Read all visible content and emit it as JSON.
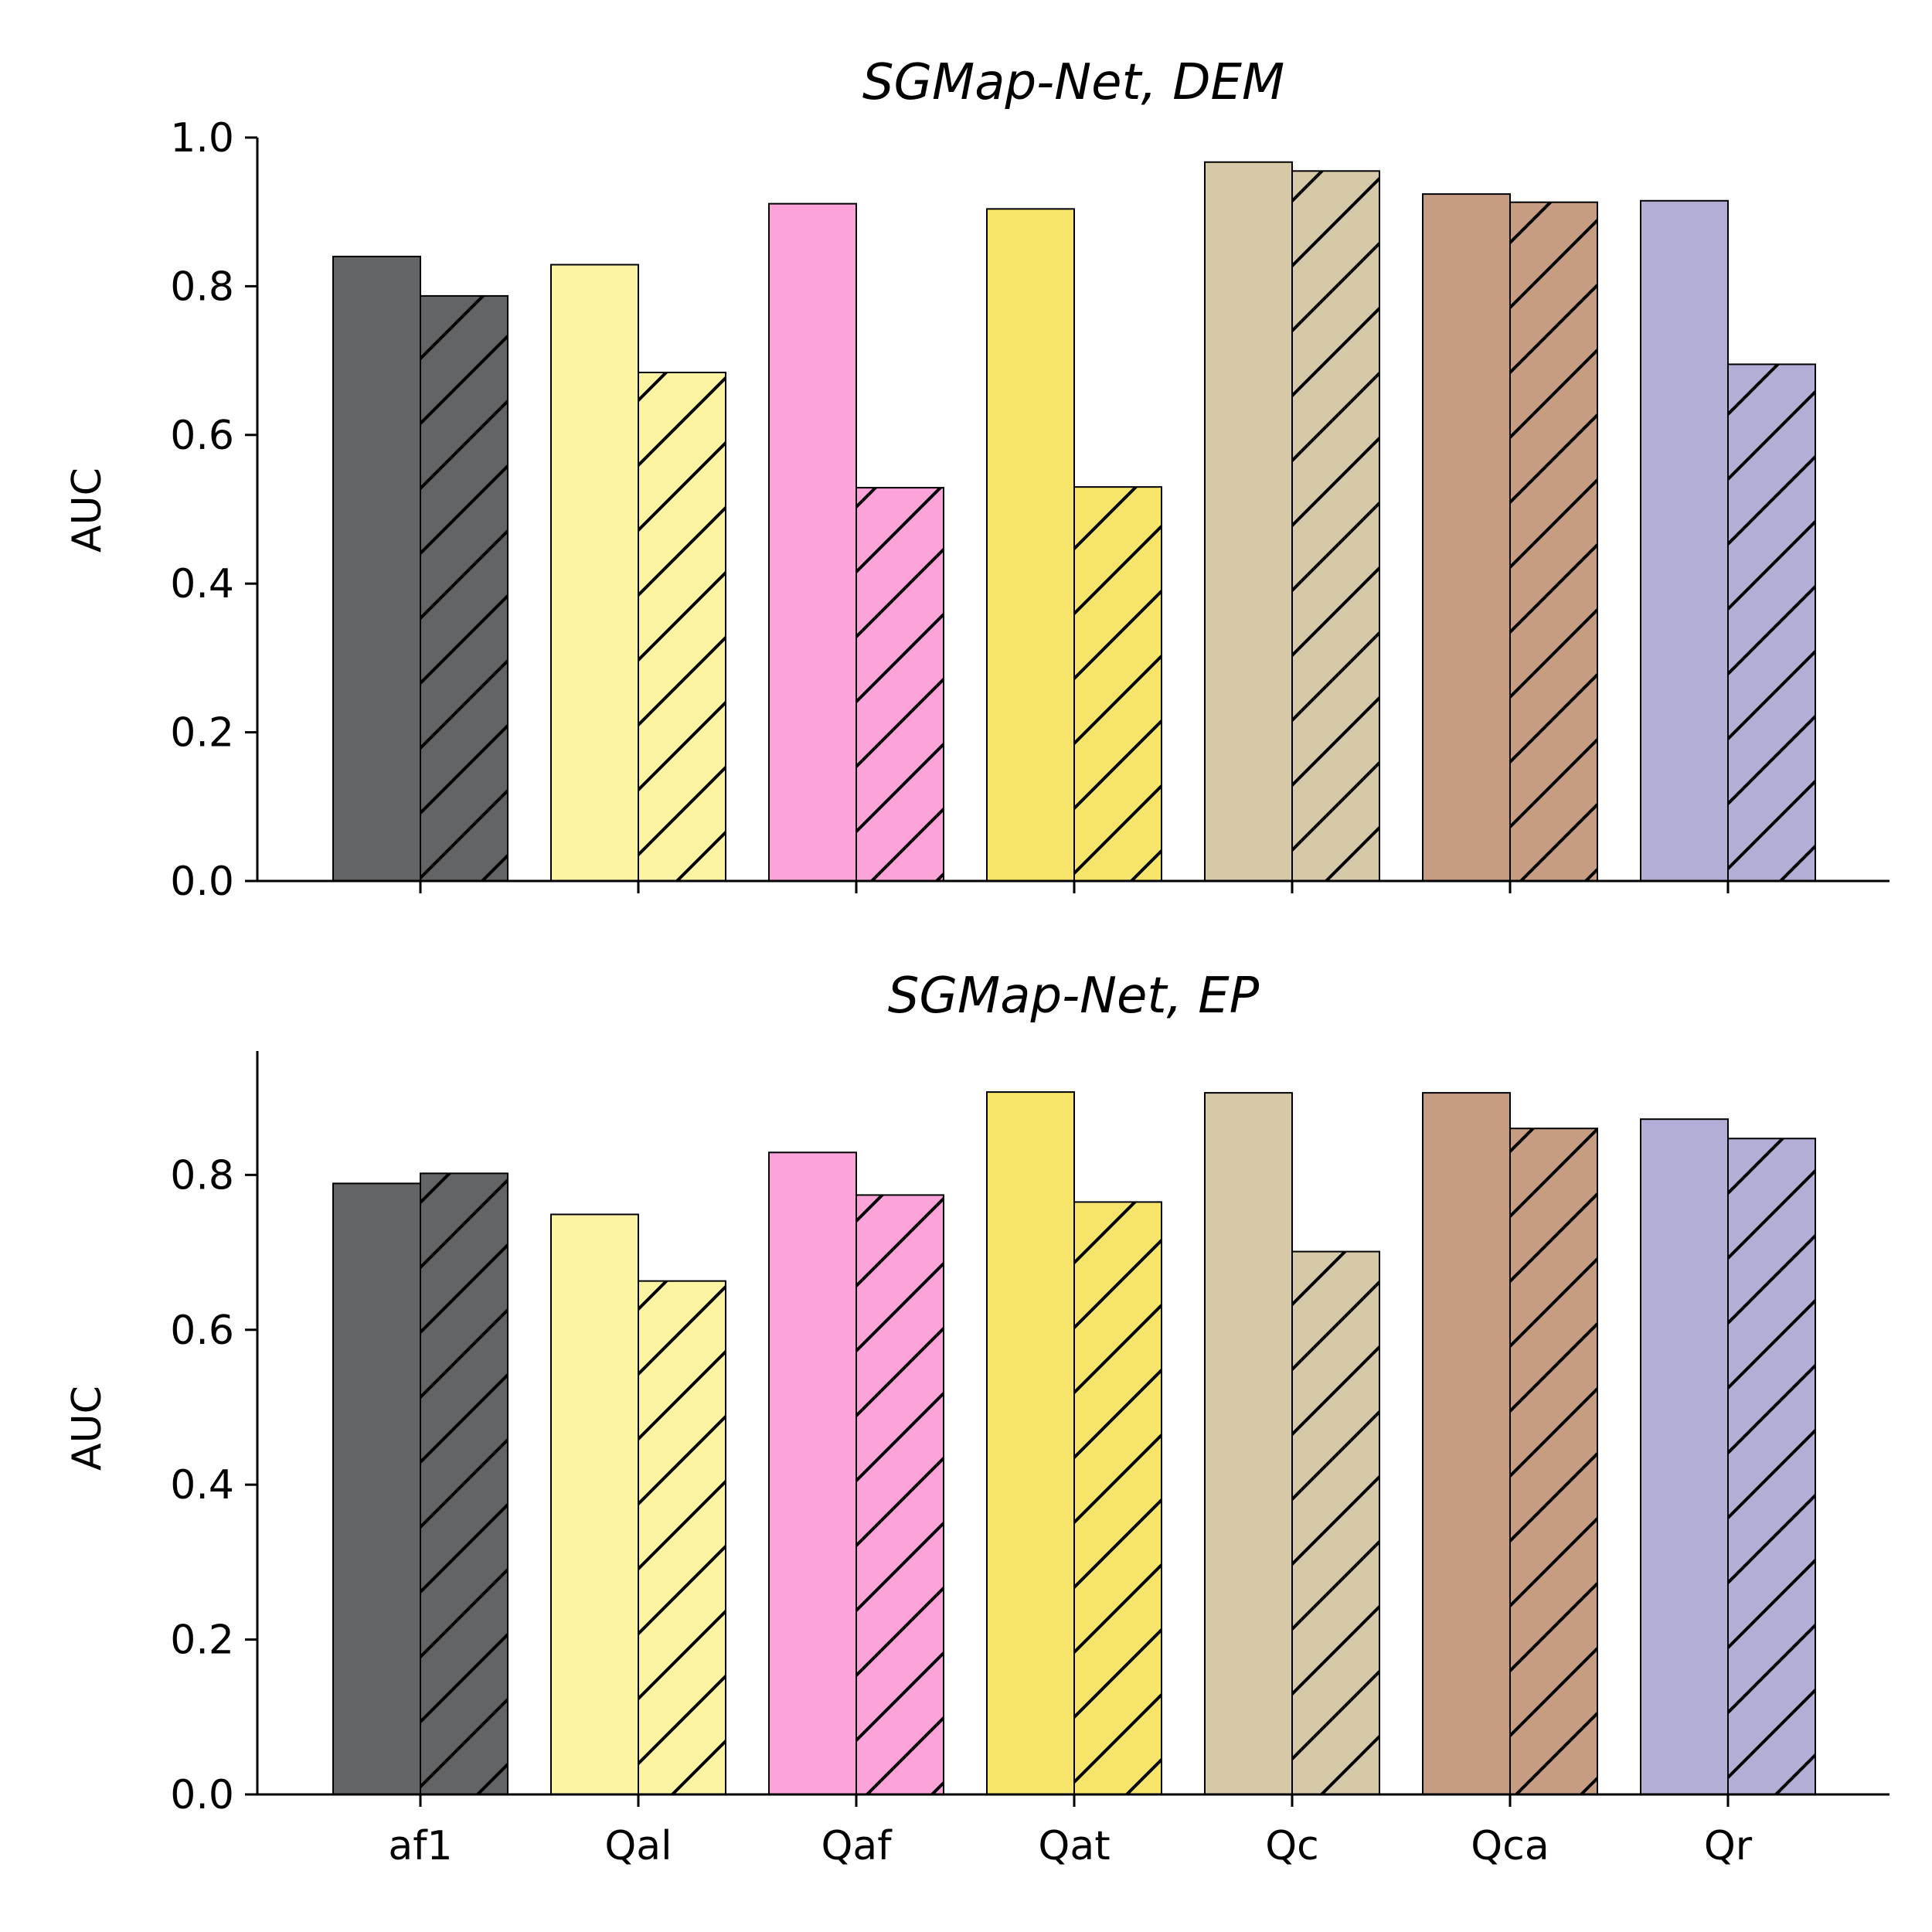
{
  "chart_data": [
    {
      "type": "bar",
      "title": "SGMap-Net, DEM",
      "xlabel": "",
      "ylabel": "AUC",
      "ylim": [
        0,
        1.0
      ],
      "yticks": [
        "0.0",
        "0.2",
        "0.4",
        "0.6",
        "0.8",
        "1.0"
      ],
      "categories": [
        "af1",
        "Qal",
        "Qaf",
        "Qat",
        "Qc",
        "Qca",
        "Qr"
      ],
      "show_xtick_labels": false,
      "colors": [
        "#636466",
        "#fcf4a3",
        "#fca3da",
        "#f7e46a",
        "#d6c9a7",
        "#c69c82",
        "#b2aed6"
      ],
      "series": [
        {
          "hatch": "none",
          "values": [
            0.84,
            0.829,
            0.911,
            0.904,
            0.967,
            0.924,
            0.915
          ]
        },
        {
          "hatch": "diagonal",
          "values": [
            0.787,
            0.684,
            0.529,
            0.53,
            0.955,
            0.913,
            0.695
          ]
        }
      ],
      "grid": false,
      "legend": "none"
    },
    {
      "type": "bar",
      "title": "SGMap-Net, EP",
      "xlabel": "",
      "ylabel": "AUC",
      "ylim": [
        0,
        0.96
      ],
      "yticks": [
        "0.0",
        "0.2",
        "0.4",
        "0.6",
        "0.8"
      ],
      "categories": [
        "af1",
        "Qal",
        "Qaf",
        "Qat",
        "Qc",
        "Qca",
        "Qr"
      ],
      "show_xtick_labels": true,
      "colors": [
        "#636466",
        "#fcf4a3",
        "#fca3da",
        "#f7e46a",
        "#d6c9a7",
        "#c69c82",
        "#b2aed6"
      ],
      "series": [
        {
          "hatch": "none",
          "values": [
            0.789,
            0.749,
            0.829,
            0.907,
            0.906,
            0.906,
            0.872
          ]
        },
        {
          "hatch": "diagonal",
          "values": [
            0.802,
            0.663,
            0.774,
            0.765,
            0.701,
            0.86,
            0.847
          ]
        }
      ],
      "grid": false,
      "legend": "none"
    }
  ]
}
